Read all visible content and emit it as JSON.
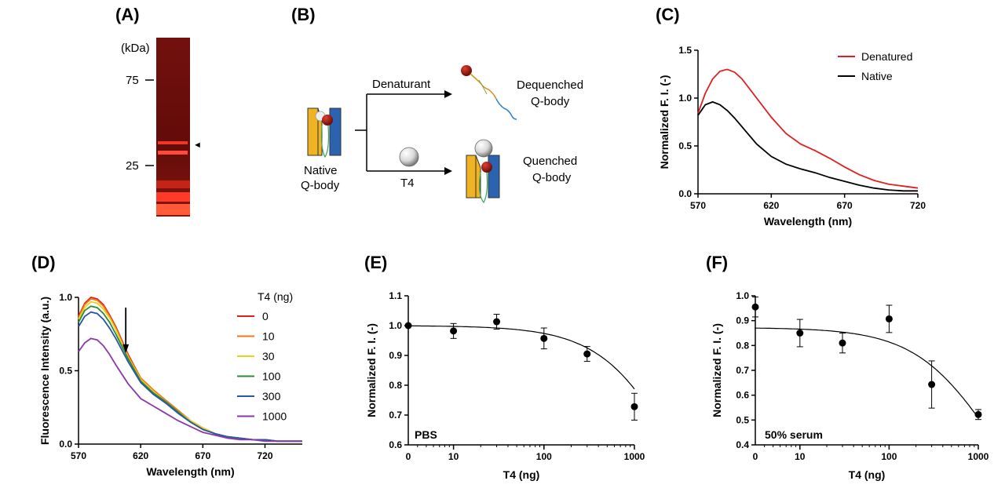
{
  "panels": {
    "A": "(A)",
    "B": "(B)",
    "C": "(C)",
    "D": "(D)",
    "E": "(E)",
    "F": "(F)"
  },
  "gel": {
    "unit_label": "(kDa)",
    "markers": [
      {
        "label": "75",
        "kda": 75
      },
      {
        "label": "25",
        "kda": 25
      }
    ],
    "arrow": "◄",
    "colors": {
      "background": "#6b0d0a",
      "band": "#ff3b2a",
      "bright": "#ff4a3a"
    }
  },
  "schematic": {
    "denaturant_label": "Denaturant",
    "t4_label": "T4",
    "native_label_1": "Native",
    "native_label_2": "Q-body",
    "dequenched_1": "Dequenched",
    "dequenched_2": "Q-body",
    "quenched_1": "Quenched",
    "quenched_2": "Q-body",
    "colors": {
      "vh": "#f0b323",
      "vl": "#2b63b0",
      "dye": "#8b1a10",
      "linker_green": "#3aa35a"
    }
  },
  "chart_data": [
    {
      "id": "C",
      "type": "line",
      "title": "",
      "xlabel": "Wavelength (nm)",
      "ylabel": "Normalized F. I. (-)",
      "xlim": [
        570,
        720
      ],
      "ylim": [
        0,
        1.5
      ],
      "xticks": [
        570,
        620,
        670,
        720
      ],
      "yticks": [
        0.0,
        0.5,
        1.0,
        1.5
      ],
      "ytick_labels": [
        "0.0",
        "0.5",
        "1.0",
        "1.5"
      ],
      "legend_position": "top-right",
      "x": [
        570,
        575,
        580,
        585,
        590,
        595,
        600,
        610,
        620,
        630,
        640,
        650,
        660,
        670,
        680,
        690,
        700,
        710,
        720
      ],
      "series": [
        {
          "name": "Denatured",
          "color": "#e02020",
          "values": [
            0.84,
            1.05,
            1.2,
            1.28,
            1.3,
            1.27,
            1.2,
            1.0,
            0.8,
            0.63,
            0.52,
            0.45,
            0.37,
            0.28,
            0.2,
            0.14,
            0.1,
            0.08,
            0.06
          ]
        },
        {
          "name": "Native",
          "color": "#000000",
          "values": [
            0.82,
            0.93,
            0.96,
            0.93,
            0.87,
            0.79,
            0.7,
            0.52,
            0.39,
            0.31,
            0.26,
            0.22,
            0.17,
            0.13,
            0.09,
            0.06,
            0.04,
            0.03,
            0.03
          ]
        }
      ]
    },
    {
      "id": "D",
      "type": "line",
      "title": "",
      "xlabel": "Wavelength (nm)",
      "ylabel": "Fluorescence  Intensity (a.u.)",
      "xlim": [
        570,
        750
      ],
      "ylim": [
        0,
        1.0
      ],
      "xticks": [
        570,
        620,
        670,
        720
      ],
      "yticks": [
        0.0,
        0.5,
        1.0
      ],
      "ytick_labels": [
        "0.0",
        "0.5",
        "1.0"
      ],
      "legend_title": "T4 (ng)",
      "legend_position": "right",
      "x": [
        570,
        575,
        580,
        585,
        590,
        595,
        600,
        610,
        620,
        630,
        640,
        650,
        660,
        670,
        680,
        690,
        700,
        710,
        720,
        730,
        740,
        750
      ],
      "series": [
        {
          "name": "0",
          "color": "#e02020",
          "values": [
            0.87,
            0.96,
            1.0,
            0.99,
            0.95,
            0.88,
            0.8,
            0.61,
            0.45,
            0.37,
            0.3,
            0.23,
            0.16,
            0.11,
            0.07,
            0.05,
            0.04,
            0.03,
            0.03,
            0.02,
            0.02,
            0.02
          ]
        },
        {
          "name": "10",
          "color": "#f07a1a",
          "values": [
            0.86,
            0.95,
            0.99,
            0.98,
            0.94,
            0.87,
            0.79,
            0.6,
            0.45,
            0.37,
            0.3,
            0.23,
            0.16,
            0.11,
            0.07,
            0.05,
            0.04,
            0.03,
            0.03,
            0.02,
            0.02,
            0.02
          ]
        },
        {
          "name": "30",
          "color": "#e8d21a",
          "values": [
            0.85,
            0.93,
            0.97,
            0.96,
            0.92,
            0.86,
            0.78,
            0.59,
            0.44,
            0.36,
            0.29,
            0.22,
            0.16,
            0.11,
            0.07,
            0.05,
            0.04,
            0.03,
            0.03,
            0.02,
            0.02,
            0.02
          ]
        },
        {
          "name": "100",
          "color": "#2e8b3a",
          "values": [
            0.83,
            0.91,
            0.94,
            0.93,
            0.89,
            0.83,
            0.75,
            0.58,
            0.43,
            0.35,
            0.29,
            0.22,
            0.15,
            0.1,
            0.07,
            0.05,
            0.04,
            0.03,
            0.03,
            0.02,
            0.02,
            0.02
          ]
        },
        {
          "name": "300",
          "color": "#2a56a8",
          "values": [
            0.8,
            0.87,
            0.9,
            0.89,
            0.85,
            0.79,
            0.72,
            0.56,
            0.42,
            0.34,
            0.28,
            0.21,
            0.15,
            0.1,
            0.07,
            0.05,
            0.04,
            0.03,
            0.03,
            0.02,
            0.02,
            0.02
          ]
        },
        {
          "name": "1000",
          "color": "#8a3aa8",
          "values": [
            0.63,
            0.69,
            0.72,
            0.71,
            0.67,
            0.61,
            0.54,
            0.41,
            0.31,
            0.26,
            0.21,
            0.16,
            0.12,
            0.08,
            0.06,
            0.04,
            0.03,
            0.03,
            0.02,
            0.02,
            0.02,
            0.02
          ]
        }
      ],
      "arrow_x": 608
    },
    {
      "id": "E",
      "type": "scatter",
      "title": "",
      "annotation": "PBS",
      "xlabel": "T4 (ng)",
      "ylabel": "Normalized F. I. (-)",
      "xscale": "log",
      "x_zero_label": "0",
      "xticks": [
        10,
        100,
        1000
      ],
      "xtick_labels": [
        "10",
        "100",
        "1000"
      ],
      "ylim": [
        0.6,
        1.1
      ],
      "yticks": [
        0.6,
        0.7,
        0.8,
        0.9,
        1.0,
        1.1
      ],
      "ytick_labels": [
        "0.6",
        "0.7",
        "0.8",
        "0.9",
        "1.0",
        "1.1"
      ],
      "points": [
        {
          "x": 0,
          "y": 1.0,
          "err": 0
        },
        {
          "x": 10,
          "y": 0.982,
          "err": 0.025
        },
        {
          "x": 30,
          "y": 1.013,
          "err": 0.025
        },
        {
          "x": 100,
          "y": 0.957,
          "err": 0.035
        },
        {
          "x": 300,
          "y": 0.905,
          "err": 0.025
        },
        {
          "x": 1000,
          "y": 0.728,
          "err": 0.045
        }
      ],
      "fit": {
        "top": 1.0,
        "bottom": 0.0,
        "ec50": 3700
      }
    },
    {
      "id": "F",
      "type": "scatter",
      "title": "",
      "annotation": "50% serum",
      "xlabel": "T4 (ng)",
      "ylabel": "Normalized F. I. (-)",
      "xscale": "log",
      "x_zero_label": "0",
      "xticks": [
        10,
        100,
        1000
      ],
      "xtick_labels": [
        "10",
        "100",
        "1000"
      ],
      "ylim": [
        0.4,
        1.0
      ],
      "yticks": [
        0.4,
        0.5,
        0.6,
        0.7,
        0.8,
        0.9,
        1.0
      ],
      "ytick_labels": [
        "0.4",
        "0.5",
        "0.6",
        "0.7",
        "0.8",
        "0.9",
        "1.0"
      ],
      "points": [
        {
          "x": 0,
          "y": 0.955,
          "err": 0.04
        },
        {
          "x": 10,
          "y": 0.85,
          "err": 0.055
        },
        {
          "x": 30,
          "y": 0.81,
          "err": 0.04
        },
        {
          "x": 100,
          "y": 0.907,
          "err": 0.055
        },
        {
          "x": 300,
          "y": 0.643,
          "err": 0.095
        },
        {
          "x": 1000,
          "y": 0.522,
          "err": 0.02
        }
      ],
      "fit": {
        "top": 0.872,
        "bottom": 0.0,
        "ec50": 1400
      }
    }
  ]
}
